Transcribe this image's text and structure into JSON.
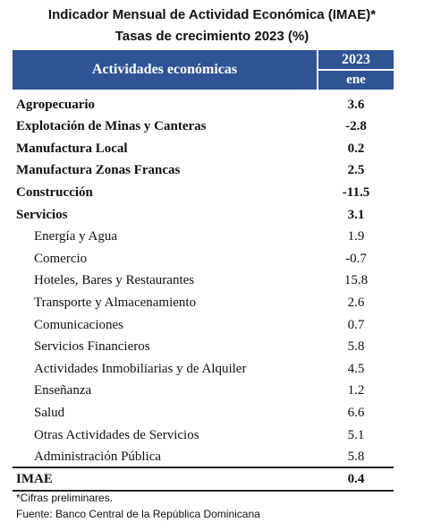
{
  "title": [
    "Indicador Mensual de Actividad Económica (IMAE)*",
    "Tasas de crecimiento 2023 (%)"
  ],
  "table": {
    "header": {
      "label": "Actividades económicas",
      "year": "2023",
      "month": "ene"
    },
    "rows": [
      {
        "label": "Agropecuario",
        "value": 3.6
      },
      {
        "label": "Explotación de Minas y Canteras",
        "value": -2.8
      },
      {
        "label": "Manufactura Local",
        "value": 0.2
      },
      {
        "label": "Manufactura Zonas Francas",
        "value": 2.5
      },
      {
        "label": "Construcción",
        "value": -11.5
      },
      {
        "label": "Servicios",
        "value": 3.1,
        "items": [
          {
            "label": "Energía y Agua",
            "value": 1.9
          },
          {
            "label": "Comercio",
            "value": -0.7
          },
          {
            "label": "Hoteles, Bares y Restaurantes",
            "value": 15.8
          },
          {
            "label": "Transporte y Almacenamiento",
            "value": 2.6
          },
          {
            "label": "Comunicaciones",
            "value": 0.7
          },
          {
            "label": "Servicios Financieros",
            "value": 5.8
          },
          {
            "label": "Actividades Inmobiliarias y de Alquiler",
            "value": 4.5
          },
          {
            "label": "Enseñanza",
            "value": 1.2
          },
          {
            "label": "Salud",
            "value": 6.6
          },
          {
            "label": "Otras Actividades de Servicios",
            "value": 5.1
          },
          {
            "label": "Administración Pública",
            "value": 5.8
          }
        ]
      }
    ],
    "total": {
      "label": "IMAE",
      "value": 0.4
    }
  },
  "notes": [
    "*Cifras preliminares.",
    "Fuente: Banco Central de la República Dominicana"
  ]
}
